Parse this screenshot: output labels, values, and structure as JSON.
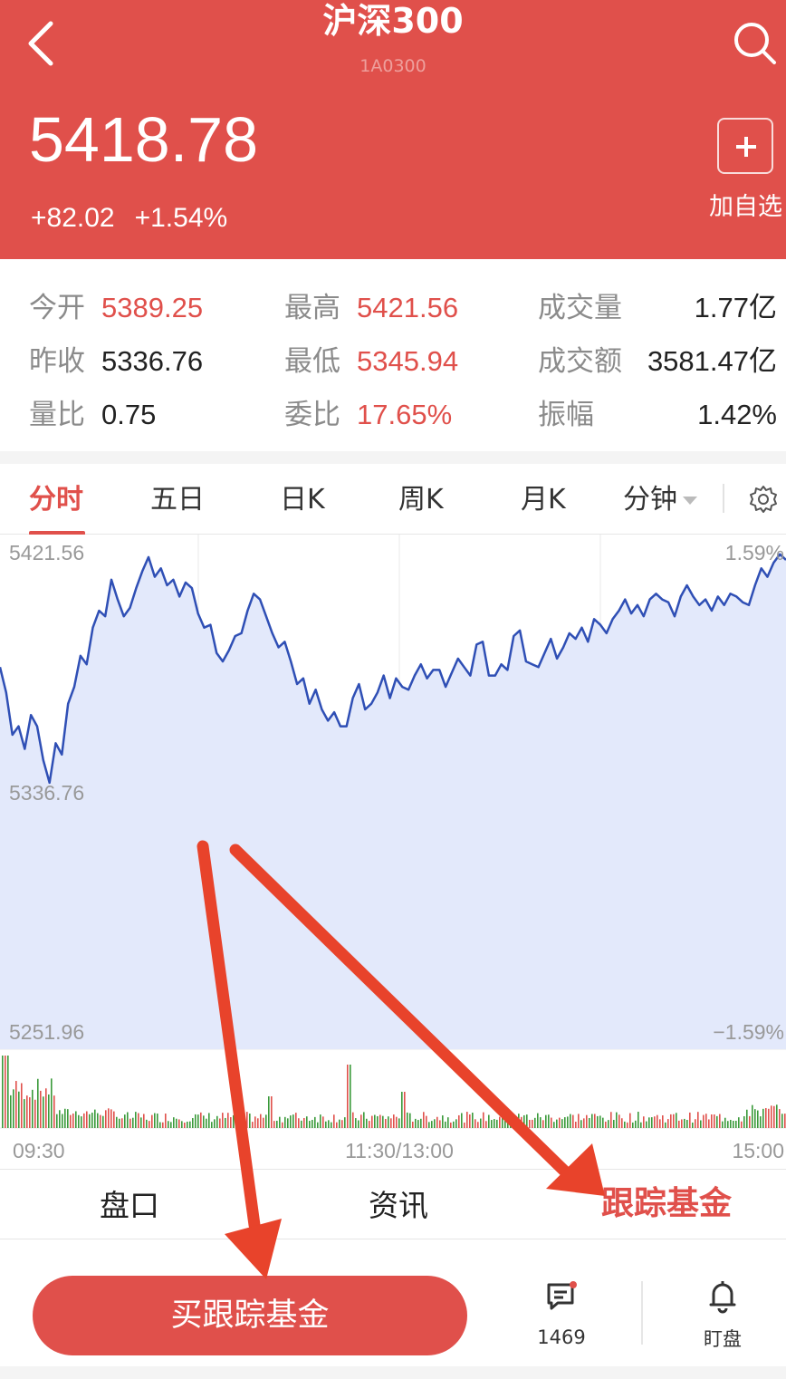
{
  "header": {
    "title": "沪深300",
    "code": "1A0300",
    "price": "5418.78",
    "change": "+82.02",
    "change_pct": "+1.54%",
    "add_label": "加自选"
  },
  "stats": {
    "open_label": "今开",
    "open": "5389.25",
    "high_label": "最高",
    "high": "5421.56",
    "volume_label": "成交量",
    "volume": "1.77亿",
    "prev_close_label": "昨收",
    "prev_close": "5336.76",
    "low_label": "最低",
    "low": "5345.94",
    "turnover_label": "成交额",
    "turnover": "3581.47亿",
    "vol_ratio_label": "量比",
    "vol_ratio": "0.75",
    "order_ratio_label": "委比",
    "order_ratio": "17.65%",
    "amplitude_label": "振幅",
    "amplitude": "1.42%"
  },
  "tabs": {
    "intraday": "分时",
    "five_day": "五日",
    "daily_k": "日K",
    "weekly_k": "周K",
    "monthly_k": "月K",
    "minute": "分钟"
  },
  "chart_data": {
    "type": "line",
    "y_top": "5421.56",
    "y_mid": "5336.76",
    "y_bottom": "5251.96",
    "pct_top": "1.59%",
    "pct_bottom": "−1.59%",
    "x_start": "09:30",
    "x_mid": "11:30/13:00",
    "x_end": "15:00",
    "ylim": [
      5251.96,
      5421.56
    ],
    "values": [
      5381,
      5372,
      5357,
      5360,
      5352,
      5364,
      5360,
      5348,
      5340,
      5354,
      5350,
      5368,
      5374,
      5385,
      5382,
      5395,
      5401,
      5399,
      5412,
      5405,
      5399,
      5402,
      5409,
      5415,
      5420,
      5413,
      5416,
      5410,
      5412,
      5406,
      5411,
      5409,
      5400,
      5395,
      5396,
      5386,
      5383,
      5387,
      5392,
      5393,
      5401,
      5407,
      5405,
      5399,
      5393,
      5388,
      5390,
      5383,
      5375,
      5377,
      5368,
      5373,
      5366,
      5362,
      5365,
      5360,
      5360,
      5370,
      5375,
      5366,
      5368,
      5372,
      5378,
      5370,
      5377,
      5374,
      5373,
      5378,
      5382,
      5377,
      5380,
      5380,
      5374,
      5379,
      5384,
      5381,
      5378,
      5389,
      5390,
      5378,
      5378,
      5382,
      5380,
      5392,
      5394,
      5383,
      5382,
      5381,
      5386,
      5391,
      5384,
      5388,
      5393,
      5391,
      5395,
      5390,
      5398,
      5396,
      5393,
      5398,
      5401,
      5405,
      5400,
      5403,
      5399,
      5405,
      5407,
      5405,
      5404,
      5399,
      5406,
      5410,
      5406,
      5403,
      5405,
      5401,
      5406,
      5403,
      5407,
      5406,
      5404,
      5403,
      5410,
      5416,
      5413,
      5418,
      5421,
      5419
    ]
  },
  "subtabs": {
    "handicap": "盘口",
    "news": "资讯",
    "tracking_funds": "跟踪基金"
  },
  "bottom": {
    "buy_label": "买跟踪基金",
    "comment_count": "1469",
    "watch_label": "盯盘"
  },
  "colors": {
    "brand_red": "#e0504b",
    "line_blue": "#2f4fb5",
    "fill_blue": "#e3e9fb",
    "vol_red": "#e0504b",
    "vol_green": "#3a9a3a"
  }
}
